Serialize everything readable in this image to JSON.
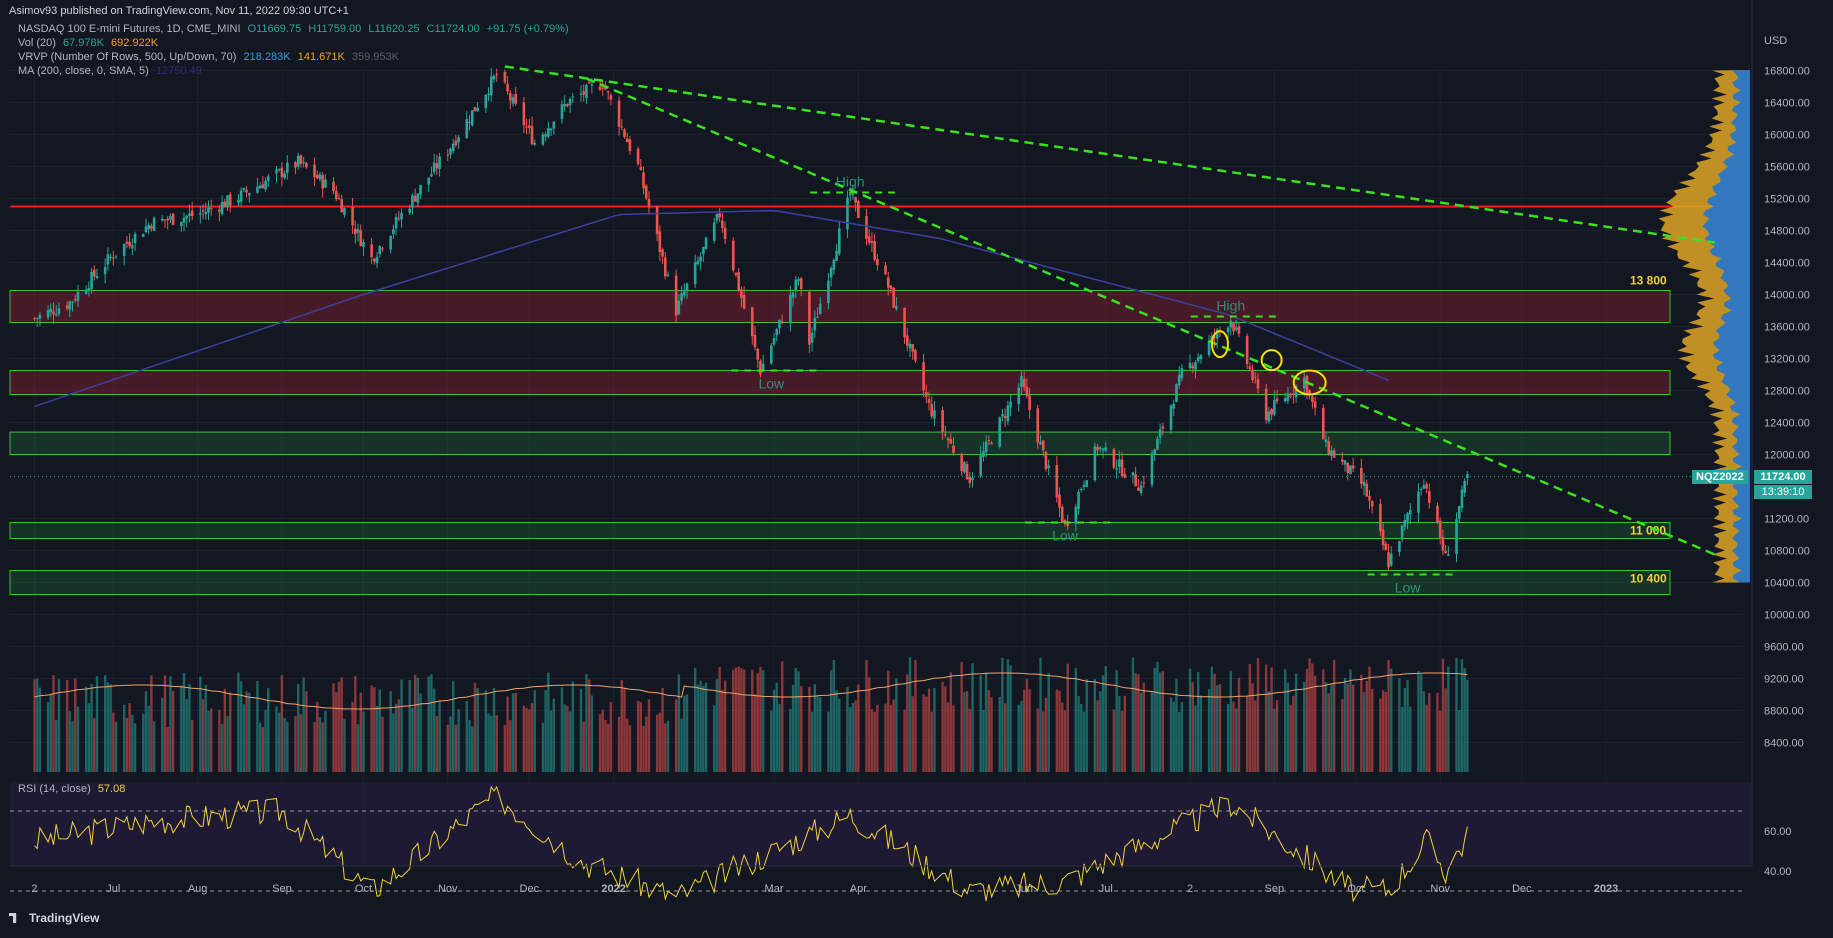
{
  "header": {
    "published": "Asimov93 published on TradingView.com, Nov 11, 2022 09:30 UTC+1"
  },
  "legend": {
    "symbol": "NASDAQ 100 E-mini Futures, 1D, CME_MINI",
    "o": "O11669.75",
    "h": "H11759.00",
    "l": "L11620.25",
    "c": "C11724.00",
    "chg": "+91.75 (+0.79%)",
    "vol_label": "Vol (20)",
    "vol_a": "67.978K",
    "vol_b": "692.922K",
    "vrvp_label": "VRVP (Number Of Rows, 500, Up/Down, 70)",
    "vrvp_a": "218.283K",
    "vrvp_b": "141.671K",
    "vrvp_c": "359.953K",
    "ma_label": "MA (200, close, 0, SMA, 5)",
    "ma_val": "12750.49",
    "rsi_label": "RSI (14, close)",
    "rsi_val": "57.08"
  },
  "ticker": {
    "symbol": "NQZ2022",
    "price": "11724.00",
    "countdown": "13:39:10"
  },
  "footer": {
    "brand": "TradingView"
  },
  "colors": {
    "bg": "#131722",
    "up": "#26a69a",
    "down": "#ef5350",
    "ma": "#3d3f8f",
    "trend": "#39e31b",
    "resistance": "#ff1a1a",
    "rsi": "#f0d13c",
    "volma": "#f0a56a"
  },
  "chart_data": {
    "type": "candlestick",
    "currency": "USD",
    "y_ticks": [
      "16800.00",
      "16400.00",
      "16000.00",
      "15600.00",
      "15200.00",
      "14800.00",
      "14400.00",
      "14000.00",
      "13600.00",
      "13200.00",
      "12800.00",
      "12400.00",
      "12000.00",
      "11200.00",
      "10800.00",
      "10400.00",
      "10000.00",
      "9600.00",
      "9200.00",
      "8800.00",
      "8400.00"
    ],
    "x_ticks": [
      "2",
      "Jul",
      "Aug",
      "Sep",
      "Oct",
      "Nov",
      "Dec",
      "2022",
      "Mar",
      "Apr",
      "Jun",
      "Jul",
      "2",
      "Sep",
      "Oct",
      "Nov",
      "Dec",
      "2023"
    ],
    "rsi_ticks": [
      "60.00",
      "40.00"
    ],
    "price_path_keypoints": [
      [
        "2021-06-02",
        13700
      ],
      [
        "2021-06-15",
        13900
      ],
      [
        "2021-07-01",
        14500
      ],
      [
        "2021-07-15",
        14900
      ],
      [
        "2021-08-01",
        15000
      ],
      [
        "2021-08-15",
        15200
      ],
      [
        "2021-09-07",
        15650
      ],
      [
        "2021-09-20",
        15300
      ],
      [
        "2021-10-04",
        14450
      ],
      [
        "2021-10-15",
        15000
      ],
      [
        "2021-11-01",
        15800
      ],
      [
        "2021-11-19",
        16750
      ],
      [
        "2021-12-03",
        15900
      ],
      [
        "2021-12-15",
        16400
      ],
      [
        "2021-12-28",
        16650
      ],
      [
        "2022-01-10",
        15600
      ],
      [
        "2022-01-24",
        13800
      ],
      [
        "2022-02-09",
        15000
      ],
      [
        "2022-02-24",
        13050
      ],
      [
        "2022-03-10",
        14200
      ],
      [
        "2022-03-14",
        13400
      ],
      [
        "2022-03-29",
        15250
      ],
      [
        "2022-04-12",
        14100
      ],
      [
        "2022-04-27",
        12600
      ],
      [
        "2022-05-12",
        11700
      ],
      [
        "2022-05-31",
        12900
      ],
      [
        "2022-06-16",
        11100
      ],
      [
        "2022-06-28",
        12100
      ],
      [
        "2022-07-14",
        11600
      ],
      [
        "2022-07-29",
        13000
      ],
      [
        "2022-08-16",
        13700
      ],
      [
        "2022-08-29",
        12500
      ],
      [
        "2022-09-12",
        12950
      ],
      [
        "2022-09-20",
        12100
      ],
      [
        "2022-10-04",
        11600
      ],
      [
        "2022-10-13",
        10650
      ],
      [
        "2022-10-26",
        11700
      ],
      [
        "2022-11-03",
        10700
      ],
      [
        "2022-11-10",
        11600
      ],
      [
        "2022-11-11",
        11724
      ]
    ],
    "horizontal_levels": [
      {
        "label": "",
        "price": 15100,
        "kind": "resistance"
      },
      {
        "label": "13 800",
        "from": 13650,
        "to": 14050,
        "kind": "zone-red"
      },
      {
        "label": "",
        "from": 12750,
        "to": 13050,
        "kind": "zone-red"
      },
      {
        "label": "",
        "from": 12000,
        "to": 12280,
        "kind": "zone-green"
      },
      {
        "label": "11 000",
        "from": 10950,
        "to": 11150,
        "kind": "zone-green"
      },
      {
        "label": "10 400",
        "from": 10250,
        "to": 10550,
        "kind": "zone-green"
      }
    ],
    "annotations": [
      {
        "text": "High",
        "date": "2022-03-29",
        "price": 15350
      },
      {
        "text": "Low",
        "date": "2022-02-28",
        "price": 12900
      },
      {
        "text": "High",
        "date": "2022-08-16",
        "price": 13800
      },
      {
        "text": "Low",
        "date": "2022-06-16",
        "price": 11000
      },
      {
        "text": "Low",
        "date": "2022-10-20",
        "price": 10350
      }
    ],
    "trendlines": [
      {
        "from": [
          "2021-11-22",
          16850
        ],
        "to": [
          "2023-02-10",
          14650
        ]
      },
      {
        "from": [
          "2021-12-22",
          16700
        ],
        "to": [
          "2023-02-10",
          10750
        ]
      }
    ],
    "ma200_keypoints": [
      [
        "2021-06-02",
        12600
      ],
      [
        "2021-10-01",
        14000
      ],
      [
        "2022-01-03",
        15000
      ],
      [
        "2022-03-01",
        15050
      ],
      [
        "2022-05-01",
        14700
      ],
      [
        "2022-08-15",
        13750
      ],
      [
        "2022-10-15",
        12900
      ]
    ],
    "rsi_keypoints": [
      [
        "2021-06-02",
        55
      ],
      [
        "2021-07-15",
        65
      ],
      [
        "2021-09-01",
        70
      ],
      [
        "2021-10-04",
        30
      ],
      [
        "2021-11-19",
        78
      ],
      [
        "2021-12-20",
        45
      ],
      [
        "2022-01-24",
        27
      ],
      [
        "2022-03-29",
        68
      ],
      [
        "2022-05-12",
        30
      ],
      [
        "2022-06-16",
        35
      ],
      [
        "2022-08-16",
        74
      ],
      [
        "2022-09-30",
        30
      ],
      [
        "2022-10-13",
        31
      ],
      [
        "2022-10-27",
        55
      ],
      [
        "2022-11-03",
        40
      ],
      [
        "2022-11-11",
        57
      ]
    ]
  }
}
